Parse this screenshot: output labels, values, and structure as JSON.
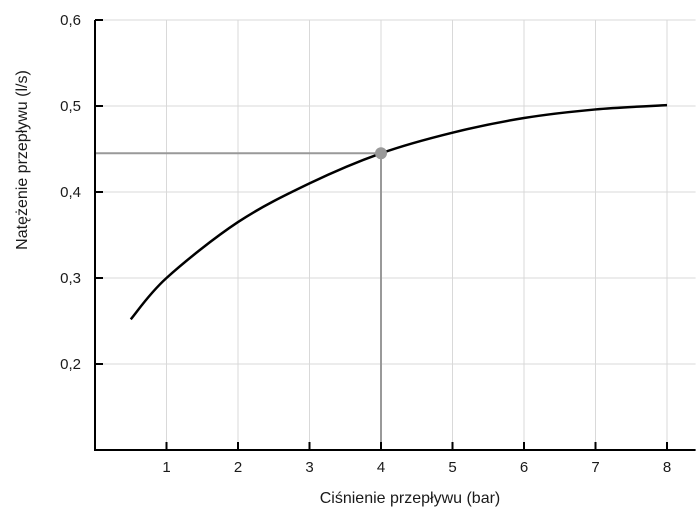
{
  "chart_data": {
    "type": "line",
    "xlabel": "Ciśnienie przepływu (bar)",
    "ylabel": "Natężenie przepływu (l/s)",
    "xlim": [
      0,
      8.4
    ],
    "ylim": [
      0.1,
      0.6
    ],
    "x_ticks": [
      1,
      2,
      3,
      4,
      5,
      6,
      7,
      8
    ],
    "x_tick_labels": [
      "1",
      "2",
      "3",
      "4",
      "5",
      "6",
      "7",
      "8"
    ],
    "y_ticks": [
      0.2,
      0.3,
      0.4,
      0.5,
      0.6
    ],
    "y_tick_labels": [
      "0,2",
      "0,3",
      "0,4",
      "0,5",
      "0,6"
    ],
    "grid": true,
    "series": [
      {
        "x": [
          0.5,
          1,
          2,
          3,
          4,
          5,
          6,
          7,
          8
        ],
        "values": [
          0.252,
          0.3,
          0.365,
          0.41,
          0.445,
          0.469,
          0.486,
          0.496,
          0.501
        ]
      }
    ],
    "highlight_point": {
      "x": 4,
      "y": 0.445
    },
    "colors": {
      "curve": "#000000",
      "axis": "#000000",
      "grid": "#d9d9d9",
      "highlight": "#999999"
    }
  }
}
